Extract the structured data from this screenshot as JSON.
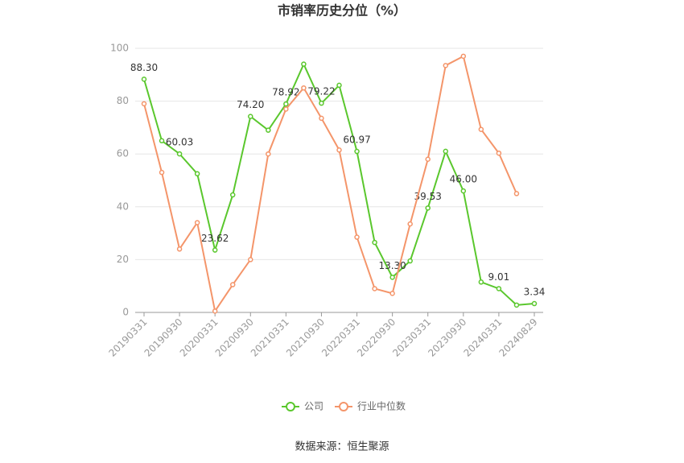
{
  "chart_data": {
    "type": "line",
    "title": "市销率历史分位（%）",
    "categories": [
      "20190331",
      null,
      "20190930",
      null,
      "20200331",
      null,
      "20200930",
      null,
      "20210331",
      null,
      "20210930",
      null,
      "20220331",
      null,
      "20220930",
      null,
      "20230331",
      null,
      "20230930",
      null,
      "20240331",
      null,
      "20240829"
    ],
    "series": [
      {
        "name": "公司",
        "color": "#5ac72d",
        "values": [
          88.3,
          65,
          60.03,
          52.5,
          23.62,
          44.5,
          74.2,
          69,
          78.92,
          94,
          79.22,
          86,
          60.97,
          26.5,
          13.3,
          19.5,
          39.53,
          61,
          46,
          11.5,
          9.01,
          2.8,
          3.34
        ],
        "value_labels": [
          "88.30",
          null,
          "60.03",
          null,
          "23.62",
          null,
          "74.20",
          null,
          "78.92",
          null,
          "79.22",
          null,
          "60.97",
          null,
          "13.30",
          null,
          "39.53",
          null,
          "46.00",
          null,
          "9.01",
          null,
          "3.34"
        ]
      },
      {
        "name": "行业中位数",
        "color": "#f4956a",
        "values": [
          79,
          53,
          24,
          34,
          0.5,
          10.5,
          20,
          60,
          77,
          85,
          73.5,
          61.5,
          28.5,
          9,
          7.2,
          33.5,
          58,
          93.5,
          97,
          69.3,
          60.3,
          45,
          null
        ]
      }
    ],
    "ylim": [
      0,
      100
    ],
    "yticks": [
      0,
      20,
      40,
      60,
      80,
      100
    ],
    "grid": true,
    "source": "数据来源：恒生聚源"
  }
}
